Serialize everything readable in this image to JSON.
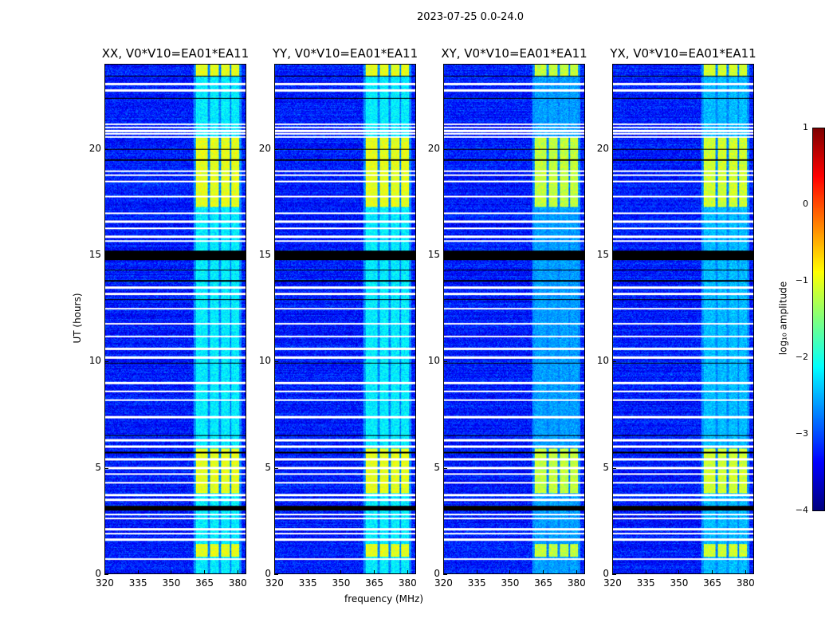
{
  "chart_data": {
    "type": "heatmap",
    "title": "2023-07-25 0.0-24.0",
    "xlabel": "frequency (MHz)",
    "ylabel": "UT (hours)",
    "xlim": [
      320,
      384
    ],
    "ylim": [
      0,
      24
    ],
    "xticks": [
      "320",
      "335",
      "350",
      "365",
      "380"
    ],
    "yticks": [
      "0",
      "5",
      "10",
      "15",
      "20"
    ],
    "panels": [
      {
        "id": "xx",
        "title": "XX, V0*V10=EA01*EA11",
        "band_strength": 1.0
      },
      {
        "id": "yy",
        "title": "YY, V0*V10=EA01*EA11",
        "band_strength": 1.0
      },
      {
        "id": "xy",
        "title": "XY, V0*V10=EA01*EA11",
        "band_strength": 0.85
      },
      {
        "id": "yx",
        "title": "YX, V0*V10=EA01*EA11",
        "band_strength": 0.9
      }
    ],
    "rfi_band_mhz": [
      [
        361,
        366.5
      ],
      [
        367.5,
        371.5
      ],
      [
        372.5,
        376.5
      ],
      [
        377.5,
        381
      ]
    ],
    "active_periods_hours": [
      [
        17.3,
        20.6
      ],
      [
        3.8,
        5.9
      ],
      [
        0.8,
        1.4
      ],
      [
        23.5,
        24
      ]
    ],
    "flagged_hours": [
      23.1,
      22.8,
      21.2,
      21.05,
      20.9,
      20.75,
      20.6,
      19.0,
      18.8,
      18.5,
      17.8,
      17.0,
      16.6,
      16.3,
      15.9,
      15.7,
      13.5,
      13.2,
      12.5,
      11.8,
      11.2,
      10.6,
      10.2,
      9.0,
      8.6,
      8.2,
      7.4,
      6.3,
      6.0,
      5.4,
      5.0,
      4.7,
      4.3,
      3.7,
      3.5,
      2.8,
      2.6,
      2.1,
      1.9,
      1.6,
      0.7
    ],
    "zero_hours": [
      [
        23.45,
        23.5
      ],
      [
        22.4,
        22.45
      ],
      [
        20.0,
        20.05
      ],
      [
        19.5,
        19.55
      ],
      [
        14.8,
        15.25
      ],
      [
        14.3,
        14.35
      ],
      [
        13.8,
        13.85
      ],
      [
        12.9,
        12.95
      ],
      [
        9.9,
        9.95
      ],
      [
        3.0,
        3.2
      ],
      [
        6.5,
        6.55
      ],
      [
        5.7,
        5.75
      ]
    ],
    "colorbar": {
      "label": "log₁₀ amplitude",
      "range": [
        -4,
        1
      ],
      "ticks": [
        "1",
        "0",
        "−1",
        "−2",
        "−3",
        "−4"
      ],
      "colormap": "jet"
    }
  }
}
